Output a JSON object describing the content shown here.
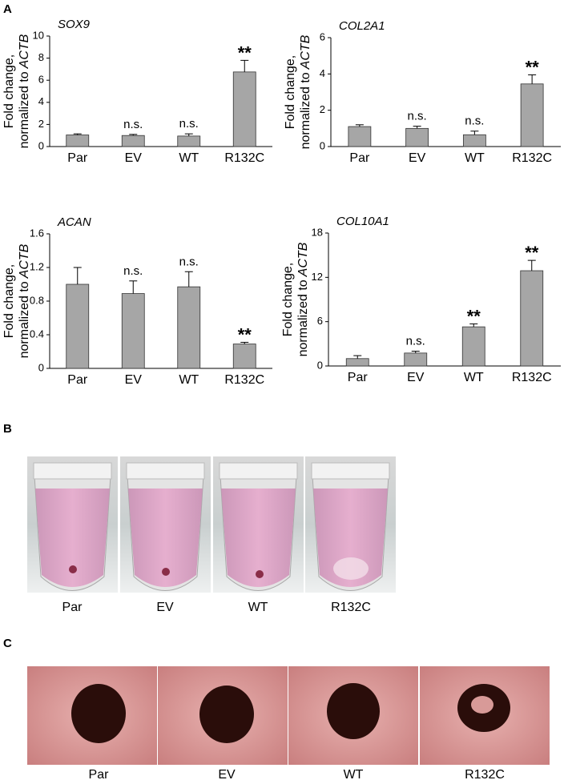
{
  "chart_data": [
    {
      "type": "bar",
      "title": "SOX9",
      "ylabel": [
        "Fold change,",
        "normalized to",
        "ACTB"
      ],
      "categories": [
        "Par",
        "EV",
        "WT",
        "R132C"
      ],
      "values": [
        1.05,
        1.0,
        0.95,
        6.75
      ],
      "errors": [
        0.1,
        0.1,
        0.2,
        1.05
      ],
      "significance": [
        null,
        "n.s.",
        "n.s.",
        "**"
      ],
      "color": "#a6a6a6",
      "ylim": [
        0,
        10
      ],
      "yticks": [
        0,
        2,
        4,
        6,
        8,
        10
      ]
    },
    {
      "type": "bar",
      "title": "COL2A1",
      "ylabel": [
        "Fold change,",
        "normalized to",
        "ACTB"
      ],
      "categories": [
        "Par",
        "EV",
        "WT",
        "R132C"
      ],
      "values": [
        1.1,
        1.0,
        0.65,
        3.45
      ],
      "errors": [
        0.1,
        0.12,
        0.2,
        0.5
      ],
      "significance": [
        null,
        "n.s.",
        "n.s.",
        "**"
      ],
      "color": "#a6a6a6",
      "ylim": [
        0,
        6
      ],
      "yticks": [
        0,
        2,
        4,
        6
      ]
    },
    {
      "type": "bar",
      "title": "ACAN",
      "ylabel": [
        "Fold change,",
        "normalized to",
        "ACTB"
      ],
      "categories": [
        "Par",
        "EV",
        "WT",
        "R132C"
      ],
      "values": [
        1.0,
        0.89,
        0.97,
        0.29
      ],
      "errors": [
        0.2,
        0.15,
        0.18,
        0.02
      ],
      "significance": [
        null,
        "n.s.",
        "n.s.",
        "**"
      ],
      "color": "#a6a6a6",
      "ylim": [
        0,
        1.6
      ],
      "yticks": [
        0,
        0.4,
        0.8,
        1.2,
        1.6
      ]
    },
    {
      "type": "bar",
      "title": "COL10A1",
      "ylabel": [
        "Fold change,",
        "normalized to",
        "ACTB"
      ],
      "categories": [
        "Par",
        "EV",
        "WT",
        "R132C"
      ],
      "values": [
        1.0,
        1.75,
        5.3,
        12.9
      ],
      "errors": [
        0.4,
        0.25,
        0.4,
        1.4
      ],
      "significance": [
        null,
        "n.s.",
        "**",
        "**"
      ],
      "color": "#a6a6a6",
      "ylim": [
        0,
        18
      ],
      "yticks": [
        0,
        6,
        12,
        18
      ]
    }
  ],
  "panel_labels": [
    "A",
    "B",
    "C"
  ],
  "tube_labels": [
    "Par",
    "EV",
    "WT",
    "R132C"
  ],
  "pellet_labels": [
    "Par",
    "EV",
    "WT",
    "R132C"
  ]
}
